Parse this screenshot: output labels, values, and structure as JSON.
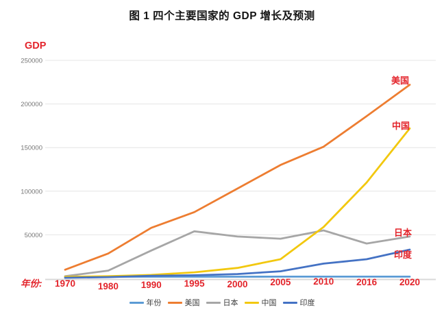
{
  "title": "图 1 四个主要国家的 GDP 增长及预测",
  "y_axis_title": "GDP",
  "x_axis_label": "年份:",
  "colors": {
    "label_red": "#e3242b",
    "gridline": "#e4e4e4",
    "axis_line": "#d9d9d9",
    "tick_text": "#767676",
    "legend_text": "#3d3d3d",
    "title_text": "#141414"
  },
  "chart_data": {
    "type": "line",
    "title": "图 1 四个主要国家的 GDP 增长及预测",
    "xlabel": "年份",
    "ylabel": "GDP",
    "categories": [
      "1970",
      "1980",
      "1990",
      "1995",
      "2000",
      "2005",
      "2010",
      "2016",
      "2020"
    ],
    "y_ticks": [
      250000,
      200000,
      150000,
      100000,
      50000
    ],
    "ylim": [
      0,
      260000
    ],
    "grid": "horizontal",
    "legend_position": "bottom",
    "series": [
      {
        "name": "年份",
        "color": "#5B9BD5",
        "values": [
          1970,
          1980,
          1990,
          1995,
          2000,
          2005,
          2010,
          2016,
          2020
        ]
      },
      {
        "name": "美国",
        "color": "#ED7D31",
        "values": [
          10000,
          28500,
          58000,
          76000,
          103000,
          130000,
          151000,
          186000,
          222000
        ]
      },
      {
        "name": "日本",
        "color": "#A6A6A6",
        "values": [
          2500,
          9000,
          32000,
          54000,
          48000,
          45500,
          55000,
          40000,
          48000
        ]
      },
      {
        "name": "中国",
        "color": "#F2C80F",
        "values": [
          1800,
          2500,
          4000,
          7000,
          12000,
          22000,
          59000,
          110000,
          172000
        ]
      },
      {
        "name": "印度",
        "color": "#4472C4",
        "values": [
          800,
          1500,
          3000,
          3600,
          5000,
          8200,
          17000,
          22000,
          33000
        ]
      }
    ]
  }
}
